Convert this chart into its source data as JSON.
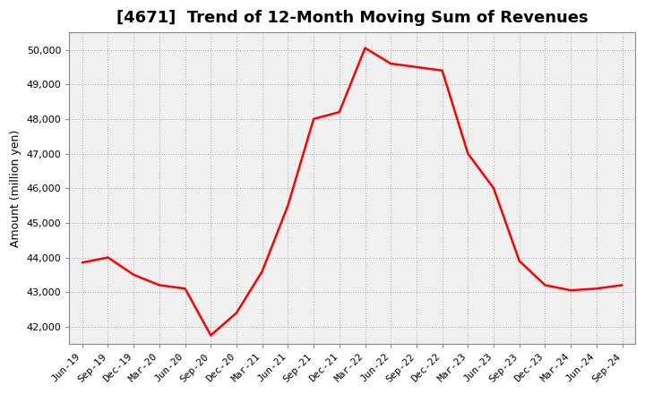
{
  "title": "[4671]  Trend of 12-Month Moving Sum of Revenues",
  "ylabel": "Amount (million yen)",
  "background_color": "#ffffff",
  "plot_bg_color": "#f0f0f0",
  "line_color": "#ff0000",
  "grid_color": "#aaaaaa",
  "xlabels": [
    "Jun-19",
    "Sep-19",
    "Dec-19",
    "Mar-20",
    "Jun-20",
    "Sep-20",
    "Dec-20",
    "Mar-21",
    "Jun-21",
    "Sep-21",
    "Dec-21",
    "Mar-22",
    "Jun-22",
    "Sep-22",
    "Dec-22",
    "Mar-23",
    "Jun-23",
    "Sep-23",
    "Dec-23",
    "Mar-24",
    "Jun-24",
    "Sep-24"
  ],
  "values": [
    43850,
    44000,
    43500,
    43200,
    43100,
    41750,
    42400,
    43600,
    45500,
    48000,
    48200,
    50050,
    49600,
    49500,
    49400,
    47000,
    46000,
    43900,
    43200,
    43050,
    43100,
    43200
  ],
  "ylim": [
    41500,
    50500
  ],
  "yticks": [
    42000,
    43000,
    44000,
    45000,
    46000,
    47000,
    48000,
    49000,
    50000
  ],
  "title_fontsize": 13,
  "ylabel_fontsize": 9,
  "tick_fontsize": 8,
  "line_width": 1.8
}
